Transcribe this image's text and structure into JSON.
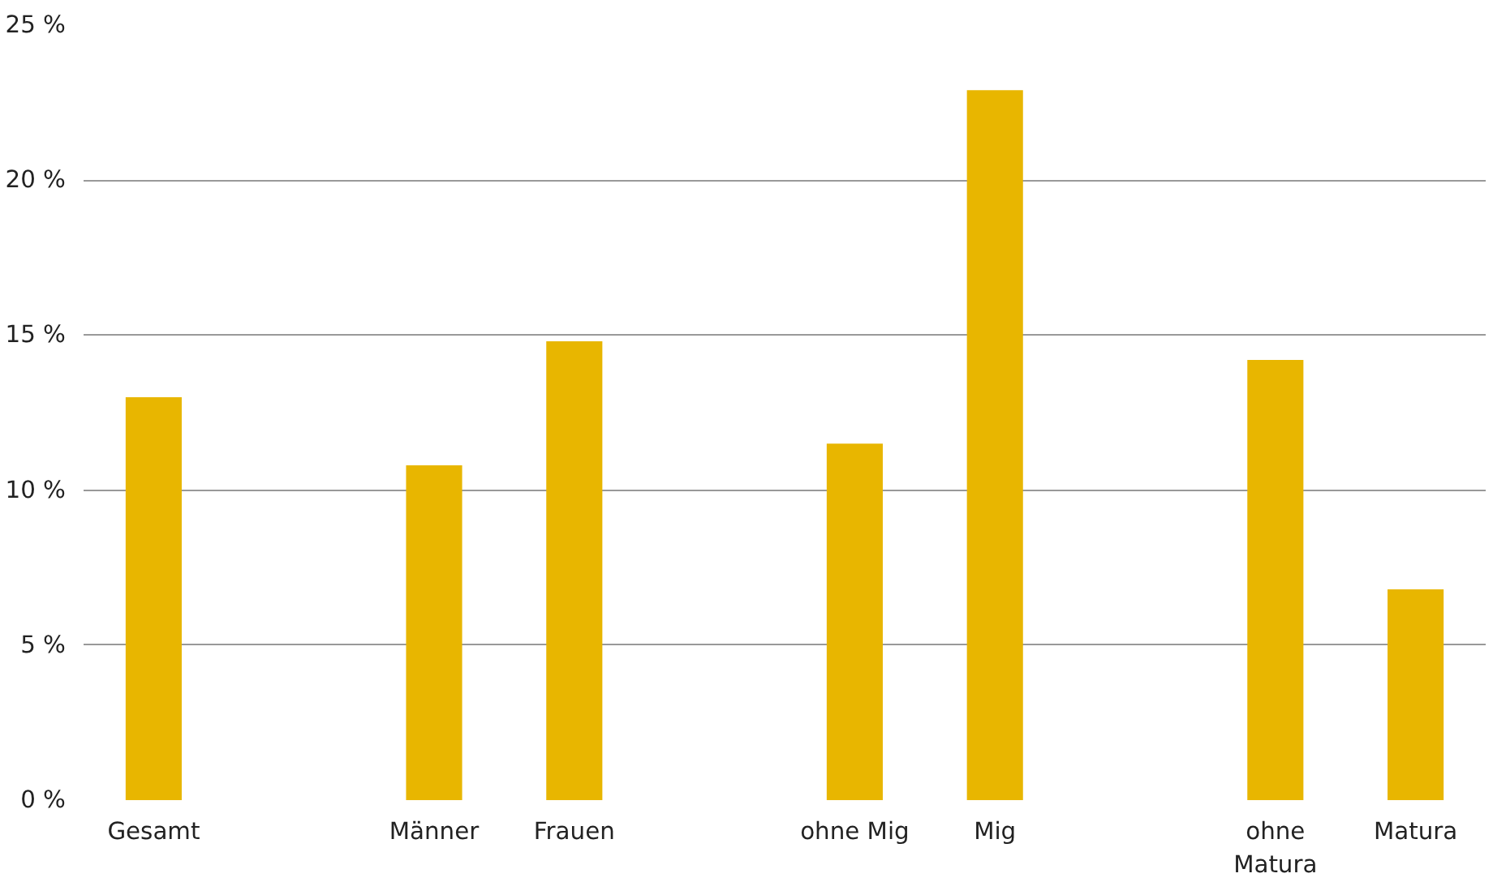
{
  "chart_data": {
    "type": "bar",
    "categories": [
      "Gesamt",
      null,
      "Männer",
      "Frauen",
      null,
      "ohne Mig",
      "Mig",
      null,
      "ohne Matura",
      "Matura"
    ],
    "values": [
      13.0,
      null,
      10.8,
      14.8,
      null,
      11.5,
      22.9,
      null,
      14.2,
      6.8
    ],
    "color": "#e8b600",
    "ylim": [
      0,
      25
    ],
    "yticks": [
      {
        "value": 0,
        "label": "0 %"
      },
      {
        "value": 5,
        "label": "5 %"
      },
      {
        "value": 10,
        "label": "10 %"
      },
      {
        "value": 15,
        "label": "15 %"
      },
      {
        "value": 20,
        "label": "20 %"
      },
      {
        "value": 25,
        "label": "25 %"
      }
    ],
    "grid": "y"
  }
}
